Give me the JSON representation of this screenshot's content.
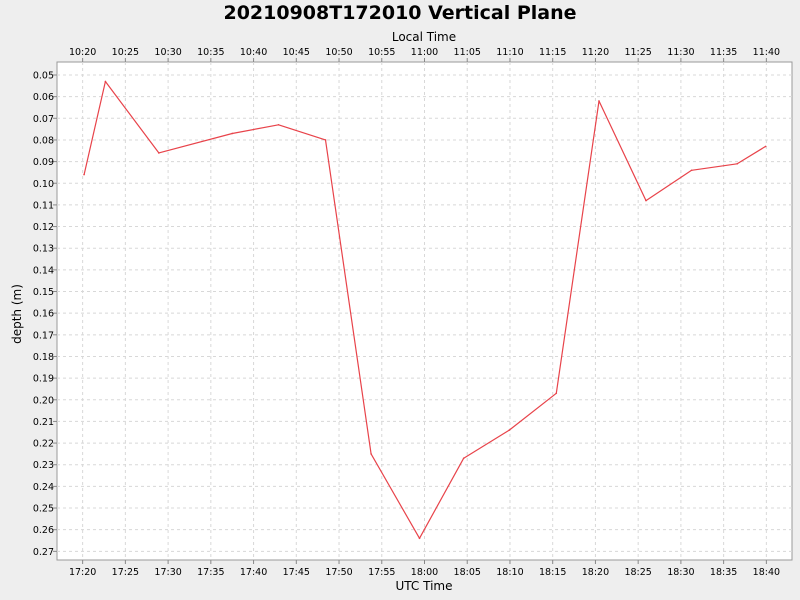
{
  "chart_data": {
    "type": "line",
    "title": "20210908T172010 Vertical Plane",
    "xlabel": "UTC Time",
    "x2label": "Local Time",
    "ylabel": "depth (m)",
    "y_inverted": true,
    "xlim": [
      "17:17",
      "18:43"
    ],
    "ylim": [
      0.044,
      0.274
    ],
    "x_ticks_utc": [
      "17:20",
      "17:25",
      "17:30",
      "17:35",
      "17:40",
      "17:45",
      "17:50",
      "17:55",
      "18:00",
      "18:05",
      "18:10",
      "18:15",
      "18:20",
      "18:25",
      "18:30",
      "18:35",
      "18:40"
    ],
    "x_ticks_local": [
      "10:20",
      "10:25",
      "10:30",
      "10:35",
      "10:40",
      "10:45",
      "10:50",
      "10:55",
      "11:00",
      "11:05",
      "11:10",
      "11:15",
      "11:20",
      "11:25",
      "11:30",
      "11:35",
      "11:40"
    ],
    "y_ticks": [
      "0.05",
      "0.06",
      "0.07",
      "0.08",
      "0.09",
      "0.10",
      "0.11",
      "0.12",
      "0.13",
      "0.14",
      "0.15",
      "0.16",
      "0.17",
      "0.18",
      "0.19",
      "0.20",
      "0.21",
      "0.22",
      "0.23",
      "0.24",
      "0.25",
      "0.26",
      "0.27"
    ],
    "grid": true,
    "series": [
      {
        "color": "#e8434a",
        "x": [
          "17:20:10",
          "17:22:40",
          "17:28:55",
          "17:37:30",
          "17:42:55",
          "17:48:25",
          "17:53:45",
          "17:59:25",
          "18:04:35",
          "18:09:55",
          "18:15:25",
          "18:20:25",
          "18:25:55",
          "18:31:15",
          "18:36:35",
          "18:39:55"
        ],
        "y": [
          0.096,
          0.053,
          0.086,
          0.077,
          0.073,
          0.08,
          0.225,
          0.264,
          0.227,
          0.214,
          0.197,
          0.062,
          0.108,
          0.094,
          0.091,
          0.083
        ]
      }
    ]
  }
}
